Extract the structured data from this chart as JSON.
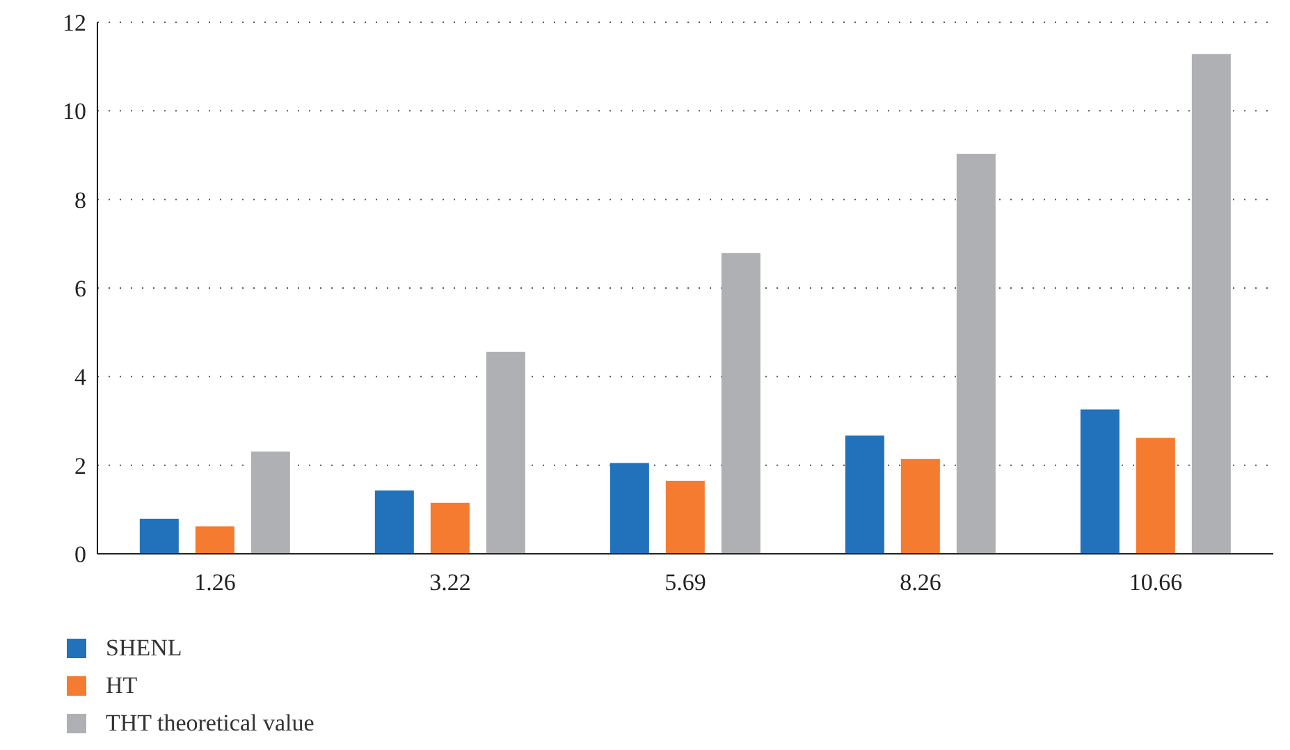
{
  "chart_data": {
    "type": "bar",
    "categories": [
      "1.26",
      "3.22",
      "5.69",
      "8.26",
      "10.66"
    ],
    "series": [
      {
        "name": "SHENL",
        "color": "#2271bb",
        "values": [
          0.79,
          1.43,
          2.05,
          2.67,
          3.26
        ]
      },
      {
        "name": "HT",
        "color": "#f47b30",
        "values": [
          0.62,
          1.15,
          1.65,
          2.14,
          2.62
        ]
      },
      {
        "name": "THT theoretical value",
        "color": "#afb0b3",
        "values": [
          2.31,
          4.56,
          6.79,
          9.03,
          11.28
        ]
      }
    ],
    "ylim": [
      0,
      12
    ],
    "yticks": [
      0,
      2,
      4,
      6,
      8,
      10,
      12
    ],
    "grid": "y",
    "legend": "bottom left"
  }
}
